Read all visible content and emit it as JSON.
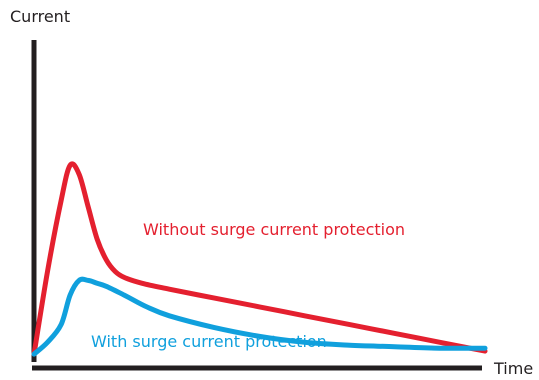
{
  "chart_data": {
    "type": "line",
    "title": "",
    "xlabel": "Time",
    "ylabel": "Current",
    "grid": false,
    "legend": "inline labels",
    "axes_ticks": false,
    "colors": {
      "axis": "#231f20",
      "without": "#e4202f",
      "with": "#10a0dd"
    },
    "series": [
      {
        "name": "Without surge current protection",
        "color": "#e4202f",
        "x": [
          0,
          0.03,
          0.06,
          0.08,
          0.1,
          0.12,
          0.14,
          0.16,
          0.18,
          0.2,
          0.24,
          0.3,
          0.4,
          0.5,
          0.6,
          0.7,
          0.8,
          0.9,
          1.0
        ],
        "y": [
          0.02,
          0.3,
          0.54,
          0.66,
          0.63,
          0.52,
          0.41,
          0.34,
          0.3,
          0.28,
          0.26,
          0.24,
          0.21,
          0.18,
          0.15,
          0.12,
          0.09,
          0.06,
          0.03
        ]
      },
      {
        "name": "With surge current protection",
        "color": "#10a0dd",
        "x": [
          0,
          0.03,
          0.06,
          0.08,
          0.1,
          0.12,
          0.14,
          0.16,
          0.2,
          0.25,
          0.3,
          0.4,
          0.5,
          0.6,
          0.7,
          0.8,
          0.9,
          1.0
        ],
        "y": [
          0.02,
          0.06,
          0.12,
          0.22,
          0.27,
          0.27,
          0.26,
          0.25,
          0.22,
          0.18,
          0.15,
          0.11,
          0.08,
          0.06,
          0.05,
          0.045,
          0.04,
          0.04
        ]
      }
    ]
  }
}
